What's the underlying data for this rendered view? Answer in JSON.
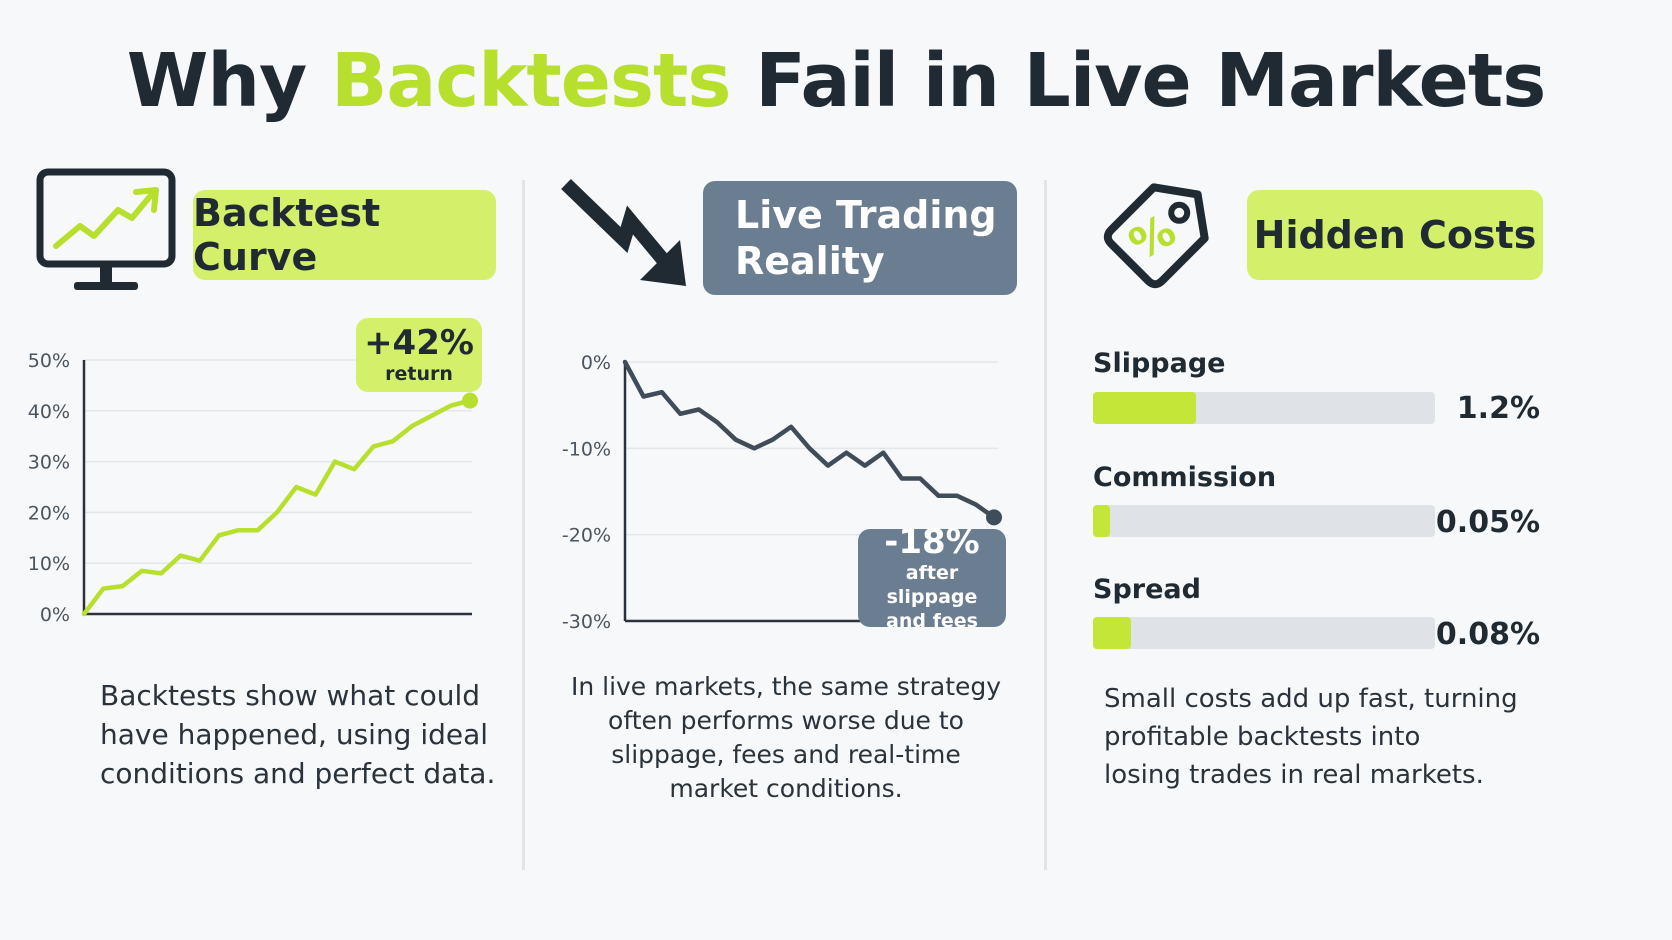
{
  "title": {
    "part1": "Why ",
    "accent": "Backtests",
    "part2": " Fail in Live Markets"
  },
  "colors": {
    "accent_green": "#b7e02e",
    "pill_green": "#d4f06a",
    "slate": "#6b7e91",
    "dark": "#1f2a33",
    "line_green": "#b7e02e",
    "line_dark": "#3f4c5a"
  },
  "sections": [
    {
      "heading": "Backtest Curve",
      "icon": "monitor-rising-chart-icon",
      "description": "Backtests show what could\nhave happened, using ideal\nconditions and perfect data.",
      "callout": {
        "value": "+42%",
        "label": "return"
      }
    },
    {
      "heading": "Live Trading\nReality",
      "icon": "downtrend-arrow-icon",
      "description": "In live markets, the same strategy\noften performs worse due to\nslippage, fees and real-time\nmarket conditions.",
      "callout": {
        "value": "-18%",
        "label": "after slippage\nand fees"
      }
    },
    {
      "heading": "Hidden Costs",
      "icon": "percent-price-tag-icon",
      "description": "Small costs add up fast, turning\nprofitable backtests into\nlosing trades in real markets.",
      "costs": [
        {
          "label": "Slippage",
          "value": "1.2%",
          "fill_fraction": 0.3
        },
        {
          "label": "Commission",
          "value": "0.05%",
          "fill_fraction": 0.05
        },
        {
          "label": "Spread",
          "value": "0.08%",
          "fill_fraction": 0.11
        }
      ]
    }
  ],
  "chart_data": [
    {
      "type": "line",
      "title": "",
      "xlabel": "",
      "ylabel": "",
      "ylim": [
        0,
        50
      ],
      "yticks": [
        "0%",
        "10%",
        "20%",
        "30%",
        "40%",
        "50%"
      ],
      "ytick_values": [
        0,
        10,
        20,
        30,
        40,
        50
      ],
      "grid": true,
      "x": [
        0,
        1,
        2,
        3,
        4,
        5,
        6,
        7,
        8,
        9,
        10,
        11,
        12,
        13,
        14,
        15,
        16,
        17,
        18,
        19,
        20
      ],
      "values": [
        0,
        5,
        5.5,
        8.5,
        8,
        11.5,
        10.5,
        15.5,
        16.5,
        16.5,
        20,
        25,
        23.5,
        30,
        28.5,
        33,
        34,
        37,
        39,
        41,
        42
      ]
    },
    {
      "type": "line",
      "title": "",
      "xlabel": "",
      "ylabel": "",
      "ylim": [
        -30,
        0
      ],
      "yticks": [
        "0%",
        "-10%",
        "-20%",
        "-30%"
      ],
      "ytick_values": [
        0,
        -10,
        -20,
        -30
      ],
      "grid": true,
      "x": [
        0,
        1,
        2,
        3,
        4,
        5,
        6,
        7,
        8,
        9,
        10,
        11,
        12,
        13,
        14,
        15,
        16,
        17,
        18,
        19,
        20
      ],
      "values": [
        0,
        -4,
        -3.5,
        -6,
        -5.5,
        -7,
        -9,
        -10,
        -9,
        -7.5,
        -10,
        -12,
        -10.5,
        -12,
        -10.5,
        -13.5,
        -13.5,
        -15.5,
        -15.5,
        -16.5,
        -18
      ]
    }
  ]
}
